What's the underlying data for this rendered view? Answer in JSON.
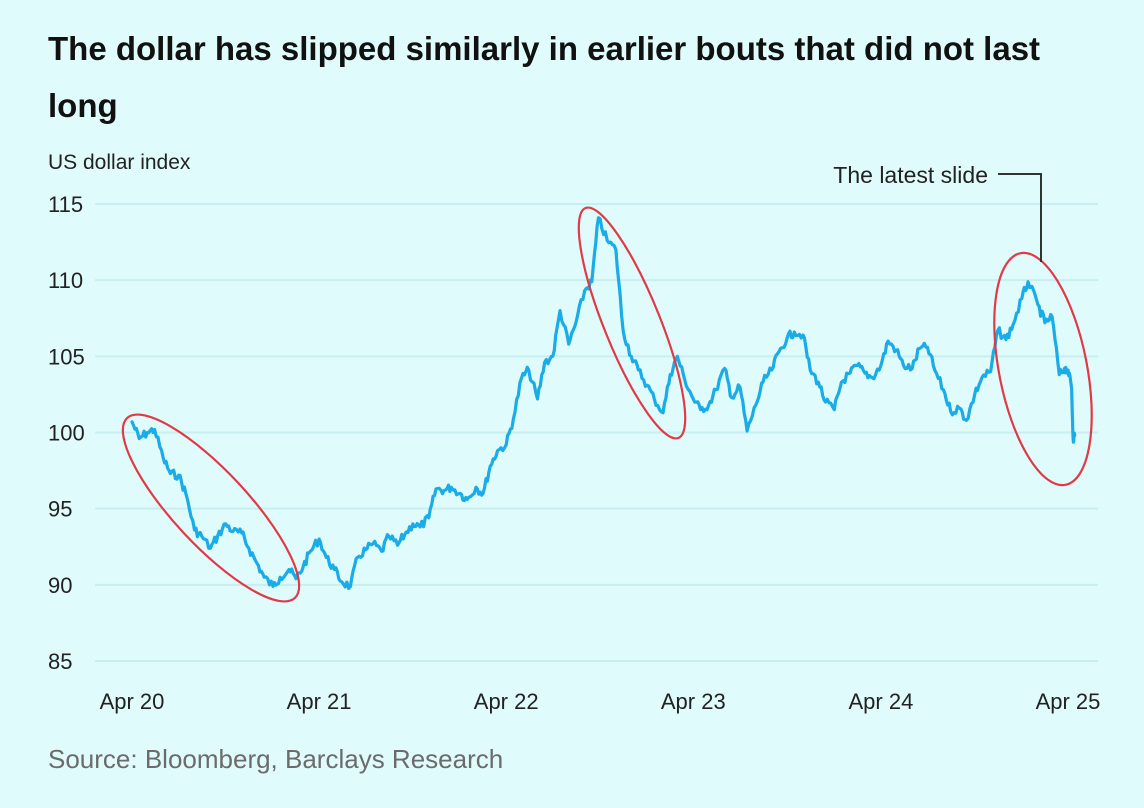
{
  "chart_data": {
    "type": "line",
    "title": "The dollar has slipped similarly in earlier bouts that did not last long",
    "ylabel": "US dollar index",
    "xlabel": "",
    "ylim": [
      85,
      115
    ],
    "yticks": [
      "85",
      "90",
      "95",
      "100",
      "105",
      "110",
      "115"
    ],
    "x_range": [
      "2020-04-01",
      "2025-04-15"
    ],
    "xticks": [
      {
        "label": "Apr 20",
        "date": "2020-04-01"
      },
      {
        "label": "Apr 21",
        "date": "2021-04-01"
      },
      {
        "label": "Apr 22",
        "date": "2022-04-01"
      },
      {
        "label": "Apr 23",
        "date": "2023-04-01"
      },
      {
        "label": "Apr 24",
        "date": "2024-04-01"
      },
      {
        "label": "Apr 25",
        "date": "2025-04-01"
      }
    ],
    "grid": true,
    "series": [
      {
        "color": "#1aace6",
        "points": [
          [
            "2020-04-01",
            100.7
          ],
          [
            "2020-04-15",
            99.6
          ],
          [
            "2020-05-01",
            100.0
          ],
          [
            "2020-05-15",
            100.2
          ],
          [
            "2020-06-01",
            98.3
          ],
          [
            "2020-06-15",
            97.3
          ],
          [
            "2020-07-01",
            97.2
          ],
          [
            "2020-07-15",
            96.0
          ],
          [
            "2020-08-01",
            93.6
          ],
          [
            "2020-08-15",
            93.2
          ],
          [
            "2020-09-01",
            92.4
          ],
          [
            "2020-09-15",
            93.2
          ],
          [
            "2020-10-01",
            94.0
          ],
          [
            "2020-10-15",
            93.5
          ],
          [
            "2020-11-01",
            93.4
          ],
          [
            "2020-11-15",
            92.4
          ],
          [
            "2020-12-01",
            91.4
          ],
          [
            "2020-12-15",
            90.5
          ],
          [
            "2021-01-01",
            89.9
          ],
          [
            "2021-01-15",
            90.5
          ],
          [
            "2021-02-01",
            91.0
          ],
          [
            "2021-02-15",
            90.4
          ],
          [
            "2021-03-01",
            91.2
          ],
          [
            "2021-03-15",
            92.2
          ],
          [
            "2021-04-01",
            93.0
          ],
          [
            "2021-04-15",
            91.8
          ],
          [
            "2021-05-01",
            91.0
          ],
          [
            "2021-05-15",
            90.2
          ],
          [
            "2021-06-01",
            89.9
          ],
          [
            "2021-06-15",
            91.8
          ],
          [
            "2021-07-01",
            92.3
          ],
          [
            "2021-07-15",
            92.7
          ],
          [
            "2021-08-01",
            92.2
          ],
          [
            "2021-08-15",
            93.2
          ],
          [
            "2021-09-01",
            92.6
          ],
          [
            "2021-09-15",
            93.3
          ],
          [
            "2021-10-01",
            94.0
          ],
          [
            "2021-10-15",
            93.8
          ],
          [
            "2021-11-01",
            94.4
          ],
          [
            "2021-11-15",
            96.3
          ],
          [
            "2021-12-01",
            96.2
          ],
          [
            "2021-12-15",
            96.4
          ],
          [
            "2022-01-01",
            96.0
          ],
          [
            "2022-01-15",
            95.6
          ],
          [
            "2022-02-01",
            96.4
          ],
          [
            "2022-02-15",
            96.0
          ],
          [
            "2022-03-01",
            97.8
          ],
          [
            "2022-03-15",
            98.8
          ],
          [
            "2022-04-01",
            99.2
          ],
          [
            "2022-04-15",
            100.9
          ],
          [
            "2022-05-01",
            103.6
          ],
          [
            "2022-05-15",
            104.1
          ],
          [
            "2022-06-01",
            102.2
          ],
          [
            "2022-06-15",
            104.6
          ],
          [
            "2022-07-01",
            105.0
          ],
          [
            "2022-07-15",
            108.0
          ],
          [
            "2022-08-01",
            105.8
          ],
          [
            "2022-08-15",
            107.2
          ],
          [
            "2022-09-01",
            109.3
          ],
          [
            "2022-09-15",
            109.9
          ],
          [
            "2022-09-28",
            114.1
          ],
          [
            "2022-10-15",
            112.6
          ],
          [
            "2022-11-01",
            112.0
          ],
          [
            "2022-11-15",
            106.7
          ],
          [
            "2022-12-01",
            105.0
          ],
          [
            "2022-12-15",
            104.1
          ],
          [
            "2023-01-01",
            103.1
          ],
          [
            "2023-01-15",
            102.2
          ],
          [
            "2023-02-01",
            101.3
          ],
          [
            "2023-02-15",
            103.8
          ],
          [
            "2023-03-01",
            105.0
          ],
          [
            "2023-03-15",
            103.5
          ],
          [
            "2023-04-01",
            102.2
          ],
          [
            "2023-04-15",
            101.5
          ],
          [
            "2023-05-01",
            101.8
          ],
          [
            "2023-05-15",
            102.8
          ],
          [
            "2023-06-01",
            104.2
          ],
          [
            "2023-06-15",
            102.3
          ],
          [
            "2023-07-01",
            103.0
          ],
          [
            "2023-07-15",
            100.1
          ],
          [
            "2023-08-01",
            101.8
          ],
          [
            "2023-08-15",
            103.3
          ],
          [
            "2023-09-01",
            104.1
          ],
          [
            "2023-09-15",
            105.3
          ],
          [
            "2023-10-01",
            106.2
          ],
          [
            "2023-10-15",
            106.6
          ],
          [
            "2023-11-01",
            106.4
          ],
          [
            "2023-11-15",
            104.1
          ],
          [
            "2023-12-01",
            103.3
          ],
          [
            "2023-12-15",
            102.0
          ],
          [
            "2024-01-01",
            101.5
          ],
          [
            "2024-01-15",
            103.3
          ],
          [
            "2024-02-01",
            103.9
          ],
          [
            "2024-02-15",
            104.4
          ],
          [
            "2024-03-01",
            103.9
          ],
          [
            "2024-03-15",
            103.6
          ],
          [
            "2024-04-01",
            104.4
          ],
          [
            "2024-04-15",
            106.0
          ],
          [
            "2024-05-01",
            105.4
          ],
          [
            "2024-05-15",
            104.4
          ],
          [
            "2024-06-01",
            104.2
          ],
          [
            "2024-06-15",
            105.5
          ],
          [
            "2024-07-01",
            105.6
          ],
          [
            "2024-07-15",
            104.1
          ],
          [
            "2024-08-01",
            102.8
          ],
          [
            "2024-08-15",
            101.4
          ],
          [
            "2024-09-01",
            101.6
          ],
          [
            "2024-09-15",
            100.8
          ],
          [
            "2024-10-01",
            102.5
          ],
          [
            "2024-10-15",
            103.6
          ],
          [
            "2024-11-01",
            104.0
          ],
          [
            "2024-11-15",
            106.7
          ],
          [
            "2024-12-01",
            106.1
          ],
          [
            "2024-12-15",
            107.1
          ],
          [
            "2025-01-01",
            108.8
          ],
          [
            "2025-01-13",
            109.9
          ],
          [
            "2025-02-01",
            108.4
          ],
          [
            "2025-02-15",
            107.2
          ],
          [
            "2025-03-01",
            107.6
          ],
          [
            "2025-03-15",
            103.8
          ],
          [
            "2025-03-25",
            104.2
          ],
          [
            "2025-04-01",
            104.1
          ],
          [
            "2025-04-08",
            102.9
          ],
          [
            "2025-04-11",
            99.6
          ],
          [
            "2025-04-14",
            99.8
          ]
        ]
      }
    ],
    "annotations": [
      {
        "type": "ellipse",
        "color": "#e03a47",
        "label": ""
      },
      {
        "type": "ellipse",
        "color": "#e03a47",
        "label": ""
      },
      {
        "type": "ellipse",
        "color": "#e03a47",
        "label": "The latest slide"
      }
    ],
    "source": "Source: Bloomberg, Barclays Research"
  }
}
